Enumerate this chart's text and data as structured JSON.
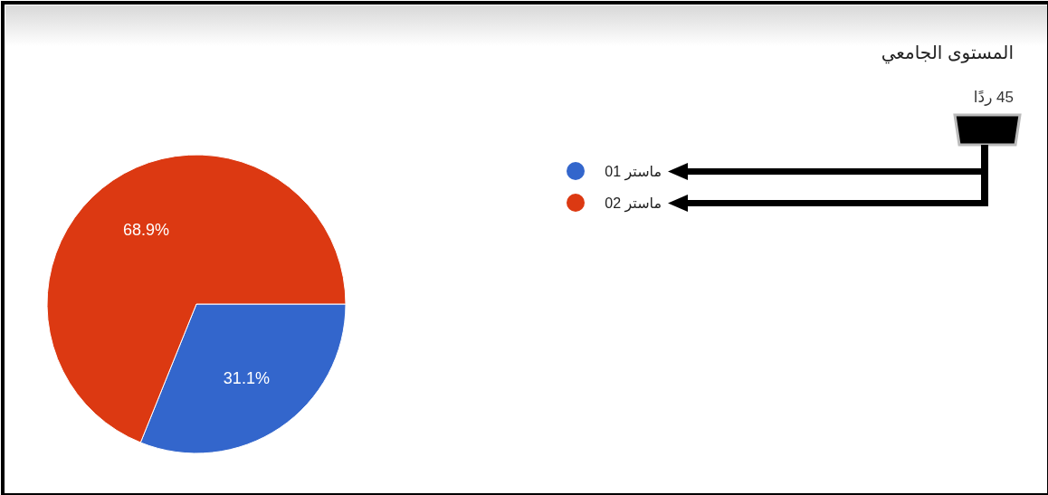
{
  "chart_data": {
    "type": "pie",
    "title": "المستوى الجامعي",
    "subtitle": "45 ردًا",
    "categories": [
      "ماستر 01",
      "ماستر 02"
    ],
    "values": [
      31.1,
      68.9
    ],
    "colors": [
      "#3366cc",
      "#dc3912"
    ],
    "value_labels": [
      "31.1%",
      "68.9%"
    ],
    "legend": "right"
  }
}
